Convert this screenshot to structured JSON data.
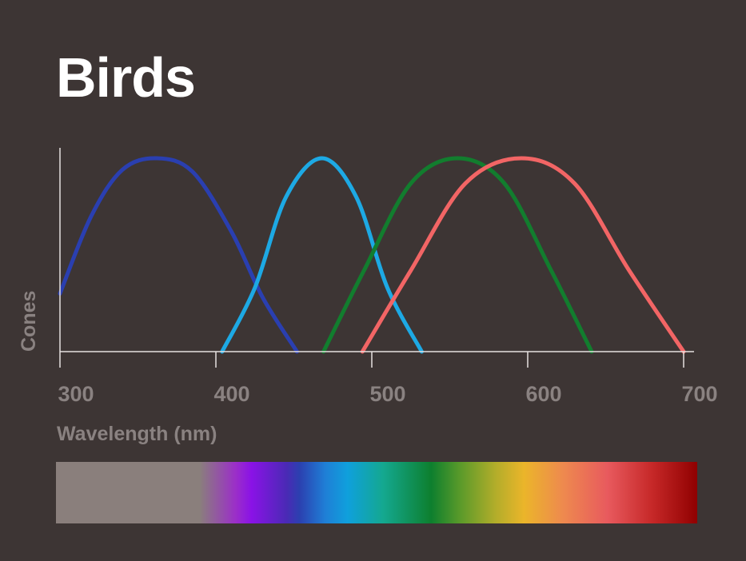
{
  "chart_data": {
    "type": "line",
    "title": "Birds",
    "xlabel": "Wavelength (nm)",
    "ylabel": "Cones",
    "xlim": [
      300,
      700
    ],
    "ylim": [
      0,
      1
    ],
    "x_ticks": [
      300,
      400,
      500,
      600,
      700
    ],
    "grid": false,
    "legend": "none",
    "series": [
      {
        "color": "#2a3fb0",
        "x": [
          300,
          320,
          340,
          362,
          385,
          410,
          430,
          452
        ],
        "y": [
          0.3,
          0.7,
          0.94,
          1.0,
          0.93,
          0.62,
          0.28,
          0.0
        ]
      },
      {
        "color": "#1da9e4",
        "x": [
          404,
          425,
          445,
          468,
          490,
          510,
          532
        ],
        "y": [
          0.0,
          0.33,
          0.8,
          1.0,
          0.8,
          0.33,
          0.0
        ]
      },
      {
        "color": "#127d2e",
        "x": [
          469,
          495,
          525,
          555,
          585,
          615,
          641
        ],
        "y": [
          0.0,
          0.42,
          0.87,
          1.0,
          0.87,
          0.42,
          0.0
        ]
      },
      {
        "color": "#f26565",
        "x": [
          494,
          525,
          560,
          596,
          630,
          665,
          700
        ],
        "y": [
          0.0,
          0.42,
          0.87,
          1.0,
          0.87,
          0.42,
          0.0
        ]
      }
    ],
    "spectrum_colors": [
      "#8a7f7c",
      "#8a12e6",
      "#2b40b0",
      "#0fa0dc",
      "#0d7f2e",
      "#ebb52a",
      "#e85a5e",
      "#900000"
    ]
  }
}
